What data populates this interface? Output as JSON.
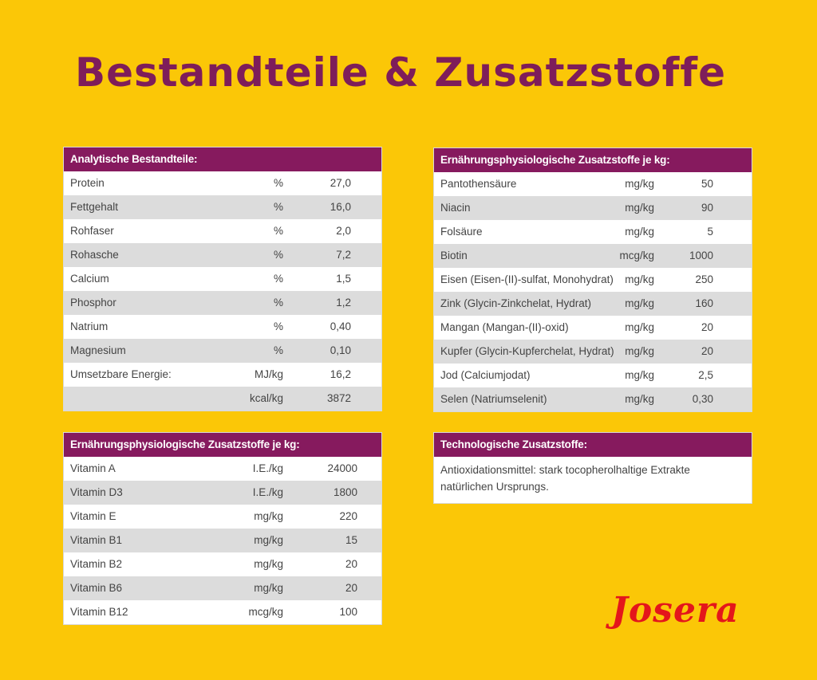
{
  "title": "Bestandteile & Zusatzstoffe",
  "analytic": {
    "header": "Analytische Bestandteile:",
    "rows": [
      {
        "name": "Protein",
        "unit": "%",
        "value": "27,0"
      },
      {
        "name": "Fettgehalt",
        "unit": "%",
        "value": "16,0"
      },
      {
        "name": "Rohfaser",
        "unit": "%",
        "value": "2,0"
      },
      {
        "name": "Rohasche",
        "unit": "%",
        "value": "7,2"
      },
      {
        "name": "Calcium",
        "unit": "%",
        "value": "1,5"
      },
      {
        "name": "Phosphor",
        "unit": "%",
        "value": "1,2"
      },
      {
        "name": "Natrium",
        "unit": "%",
        "value": "0,40"
      },
      {
        "name": "Magnesium",
        "unit": "%",
        "value": "0,10"
      },
      {
        "name": "Umsetzbare Energie:",
        "unit": "MJ/kg",
        "value": "16,2"
      },
      {
        "name": "",
        "unit": "kcal/kg",
        "value": "3872"
      }
    ]
  },
  "trace": {
    "header": "Ernährungsphysiologische Zusatzstoffe je kg:",
    "rows": [
      {
        "name": "Pantothensäure",
        "unit": "mg/kg",
        "value": "50"
      },
      {
        "name": "Niacin",
        "unit": "mg/kg",
        "value": "90"
      },
      {
        "name": "Folsäure",
        "unit": "mg/kg",
        "value": "5"
      },
      {
        "name": "Biotin",
        "unit": "mcg/kg",
        "value": "1000"
      },
      {
        "name": "Eisen (Eisen-(II)-sulfat, Monohydrat)",
        "unit": "mg/kg",
        "value": "250"
      },
      {
        "name": "Zink (Glycin-Zinkchelat, Hydrat)",
        "unit": "mg/kg",
        "value": "160"
      },
      {
        "name": "Mangan (Mangan-(II)-oxid)",
        "unit": "mg/kg",
        "value": "20"
      },
      {
        "name": "Kupfer (Glycin-Kupferchelat, Hydrat)",
        "unit": "mg/kg",
        "value": "20"
      },
      {
        "name": "Jod (Calciumjodat)",
        "unit": "mg/kg",
        "value": "2,5"
      },
      {
        "name": "Selen (Natriumselenit)",
        "unit": "mg/kg",
        "value": "0,30"
      }
    ]
  },
  "vitamins": {
    "header": "Ernährungsphysiologische Zusatzstoffe je kg:",
    "rows": [
      {
        "name": "Vitamin A",
        "unit": "I.E./kg",
        "value": "24000"
      },
      {
        "name": "Vitamin D3",
        "unit": "I.E./kg",
        "value": "1800"
      },
      {
        "name": "Vitamin E",
        "unit": "mg/kg",
        "value": "220"
      },
      {
        "name": "Vitamin B1",
        "unit": "mg/kg",
        "value": "15"
      },
      {
        "name": "Vitamin B2",
        "unit": "mg/kg",
        "value": "20"
      },
      {
        "name": "Vitamin B6",
        "unit": "mg/kg",
        "value": "20"
      },
      {
        "name": "Vitamin B12",
        "unit": "mcg/kg",
        "value": "100"
      }
    ]
  },
  "technological": {
    "header": "Technologische Zusatzstoffe:",
    "text_line1": "Antioxidationsmittel: stark tocopherolhaltige Extrakte",
    "text_line2": "natürlichen Ursprungs."
  },
  "brand": {
    "logo_text": "Josera",
    "colors": {
      "background": "#fbc707",
      "header": "#861a5e",
      "title": "#7e1d5a",
      "logo": "#e4161b"
    }
  }
}
